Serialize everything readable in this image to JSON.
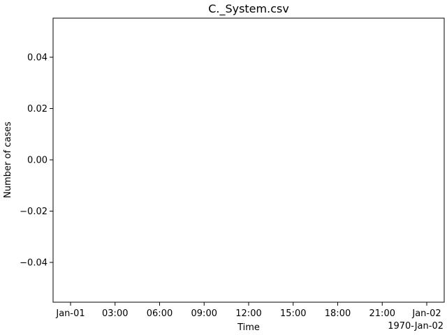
{
  "chart_data": {
    "type": "line",
    "title": "C._System.csv",
    "xlabel": "Time",
    "ylabel": "Number of cases",
    "x_offset_label": "1970-Jan-02",
    "series": [],
    "xlim": [
      0,
      24
    ],
    "ylim": [
      -0.055,
      0.055
    ],
    "x_ticks": [
      {
        "value": 0,
        "label": "Jan-01"
      },
      {
        "value": 3,
        "label": "03:00"
      },
      {
        "value": 6,
        "label": "06:00"
      },
      {
        "value": 9,
        "label": "09:00"
      },
      {
        "value": 12,
        "label": "12:00"
      },
      {
        "value": 15,
        "label": "15:00"
      },
      {
        "value": 18,
        "label": "18:00"
      },
      {
        "value": 21,
        "label": "21:00"
      },
      {
        "value": 24,
        "label": "Jan-02"
      }
    ],
    "y_ticks": [
      {
        "value": 0.04,
        "label": "0.04"
      },
      {
        "value": 0.02,
        "label": "0.02"
      },
      {
        "value": 0.0,
        "label": "0.00"
      },
      {
        "value": -0.02,
        "label": "−0.02"
      },
      {
        "value": -0.04,
        "label": "−0.04"
      }
    ],
    "grid": false,
    "legend": "none"
  }
}
